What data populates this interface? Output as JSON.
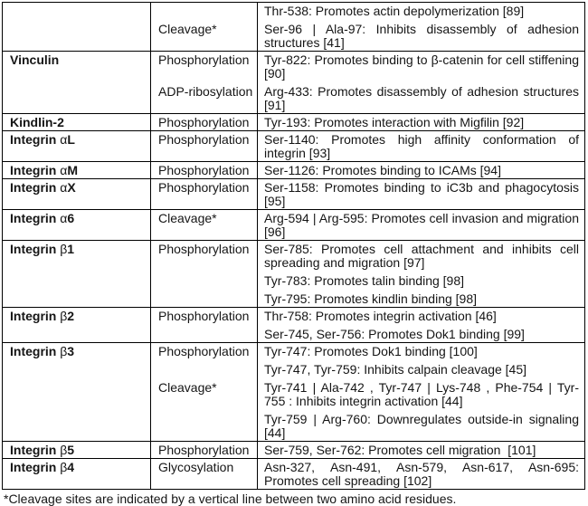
{
  "table": {
    "rows": [
      {
        "name_pre": "",
        "greek": "",
        "name_suf": "",
        "entries": [
          {
            "label": "",
            "text": "Thr-538: Promotes actin depolymerization [89]"
          },
          {
            "label": "Cleavage*",
            "text": "Ser-96 | Ala-97: Inhibits disassembly of adhesion structures [41]"
          }
        ]
      },
      {
        "name_pre": "Vinculin",
        "greek": "",
        "name_suf": "",
        "entries": [
          {
            "label": "Phosphorylation",
            "text": "Tyr-822: Promotes binding to β-catenin for cell stiffening [90]"
          },
          {
            "label": "ADP-ribosylation",
            "text": "Arg-433: Promotes disassembly of adhesion structures [91]"
          }
        ]
      },
      {
        "name_pre": "Kindlin-2",
        "greek": "",
        "name_suf": "",
        "entries": [
          {
            "label": "Phosphorylation",
            "text": "Tyr-193: Promotes interaction with Migfilin [92]"
          }
        ]
      },
      {
        "name_pre": "Integrin ",
        "greek": "α",
        "name_suf": "L",
        "entries": [
          {
            "label": "Phosphorylation",
            "text": "Ser-1140: Promotes high affinity conformation of integrin [93]"
          }
        ]
      },
      {
        "name_pre": "Integrin ",
        "greek": "α",
        "name_suf": "M",
        "entries": [
          {
            "label": "Phosphorylation",
            "text": "Ser-1126: Promotes binding to ICAMs [94]"
          }
        ]
      },
      {
        "name_pre": "Integrin ",
        "greek": "α",
        "name_suf": "X",
        "entries": [
          {
            "label": "Phosphorylation",
            "text": "Ser-1158: Promotes binding to iC3b and phagocytosis [95]"
          }
        ]
      },
      {
        "name_pre": "Integrin ",
        "greek": "α",
        "name_suf": "6",
        "entries": [
          {
            "label": "Cleavage*",
            "text": "Arg-594 | Arg-595: Promotes cell invasion and migration [96]"
          }
        ]
      },
      {
        "name_pre": "Integrin ",
        "greek": "β",
        "name_suf": "1",
        "entries": [
          {
            "label": "Phosphorylation",
            "text": "Ser-785: Promotes cell attachment and inhibits cell spreading and migration [97]"
          },
          {
            "label": "",
            "text": "Tyr-783: Promotes talin binding [98]"
          },
          {
            "label": "",
            "text": "Tyr-795: Promotes kindlin binding [98]"
          }
        ]
      },
      {
        "name_pre": "Integrin ",
        "greek": "β",
        "name_suf": "2",
        "entries": [
          {
            "label": "Phosphorylation",
            "text": "Thr-758: Promotes integrin activation [46]"
          },
          {
            "label": "",
            "text": "Ser-745, Ser-756: Promotes Dok1 binding [99]"
          }
        ]
      },
      {
        "name_pre": "Integrin ",
        "greek": "β",
        "name_suf": "3",
        "entries": [
          {
            "label": "Phosphorylation",
            "text": "Tyr-747: Promotes Dok1 binding [100]"
          },
          {
            "label": "",
            "text": "Tyr-747, Tyr-759: Inhibits calpain cleavage [45]"
          },
          {
            "label": "Cleavage*",
            "text": "Tyr-741 | Ala-742 , Tyr-747 | Lys-748 , Phe-754 | Tyr-755 : Inhibits integrin activation [44]"
          },
          {
            "label": "",
            "text": "Tyr-759 | Arg-760: Downregulates outside-in signaling [44]"
          }
        ]
      },
      {
        "name_pre": "Integrin ",
        "greek": "β",
        "name_suf": "5",
        "entries": [
          {
            "label": "Phosphorylation",
            "text": "Ser-759, Ser-762: Promotes cell migration  [101]"
          }
        ]
      },
      {
        "name_pre": "Integrin ",
        "greek": "β",
        "name_suf": "4",
        "entries": [
          {
            "label": "Glycosylation",
            "text": "Asn-327, Asn-491, Asn-579, Asn-617, Asn-695: Promotes cell spreading [102]"
          }
        ]
      }
    ]
  },
  "footnote": "*Cleavage sites are indicated by a vertical line between two amino acid residues."
}
